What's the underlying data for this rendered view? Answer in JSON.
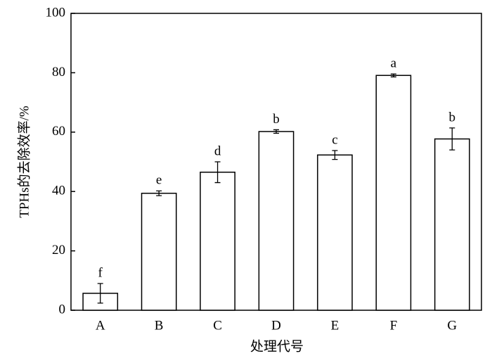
{
  "chart_data": {
    "type": "bar",
    "x_label": "处理代号",
    "y_label": "TPHs的去除效率/%",
    "categories": [
      "A",
      "B",
      "C",
      "D",
      "E",
      "F",
      "G"
    ],
    "values": [
      5.7,
      39.4,
      46.5,
      60.2,
      52.3,
      79.1,
      57.7
    ],
    "errors": [
      3.3,
      0.8,
      3.5,
      0.6,
      1.5,
      0.5,
      3.7
    ],
    "significance": [
      "f",
      "e",
      "d",
      "b",
      "c",
      "a",
      "b"
    ],
    "color": "#ffffff",
    "ylim": [
      0,
      100
    ],
    "yticks": [
      0,
      20,
      40,
      60,
      80,
      100
    ]
  }
}
